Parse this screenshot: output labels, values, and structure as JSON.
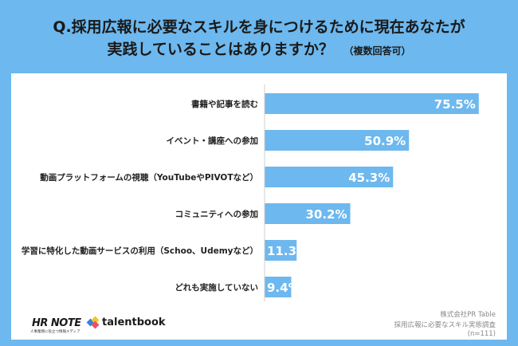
{
  "title": {
    "line1": "Q.採用広報に必要なスキルを身につけるために現在あなたが",
    "line2": "実践していることはありますか？",
    "note": "（複数回答可）"
  },
  "chart_data": {
    "type": "bar",
    "orientation": "horizontal",
    "categories": [
      "書籍や記事を読む",
      "イベント・講座への参加",
      "動画プラットフォームの視聴（YouTubeやPIVOTなど）",
      "コミュニティへの参加",
      "学習に特化した動画サービスの利用（Schoo、Udemyなど）",
      "どれも実施していない"
    ],
    "values": [
      75.5,
      50.9,
      45.3,
      30.2,
      11.3,
      9.4
    ],
    "value_labels": [
      "75.5%",
      "50.9%",
      "45.3%",
      "30.2%",
      "11.3",
      "9.4%"
    ],
    "xlim": [
      0,
      100
    ],
    "grid": false,
    "bar_color": "#6db8ee"
  },
  "source": {
    "line1": "株式会社PR Table",
    "line2": "採用広報に必要なスキル実態調査",
    "line3": "(n=111)"
  },
  "logos": {
    "hrnote": "HR NOTE",
    "hrnote_sub": "人事業務に役立つ情報メディア",
    "talentbook": "talentbook"
  },
  "colors": {
    "background": "#6db8ee",
    "panel": "#ffffff"
  }
}
